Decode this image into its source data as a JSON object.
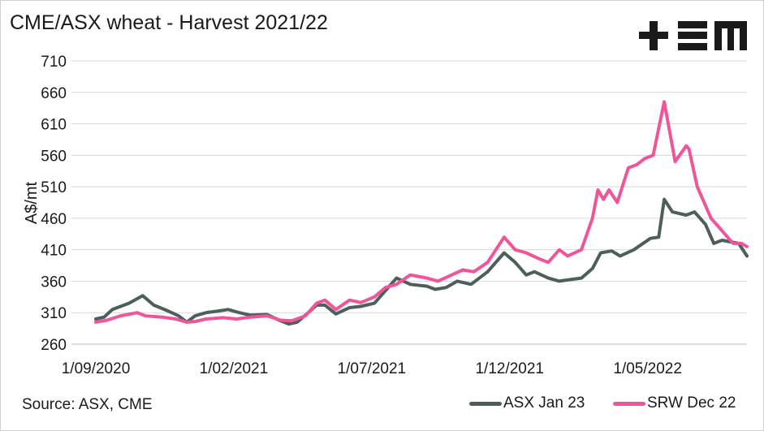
{
  "chart_data": {
    "type": "line",
    "title": "CME/ASX wheat - Harvest 2021/22",
    "xlabel": "",
    "ylabel": "A$/mt",
    "x_unit": "months since 1/09/2020",
    "xlim": [
      0,
      23.6
    ],
    "ylim": [
      260,
      710
    ],
    "yticks": [
      260,
      310,
      360,
      410,
      460,
      510,
      560,
      610,
      660,
      710
    ],
    "xticks": [
      {
        "x": 0,
        "label": "1/09/2020"
      },
      {
        "x": 5,
        "label": "1/02/2021"
      },
      {
        "x": 10,
        "label": "1/07/2021"
      },
      {
        "x": 15,
        "label": "1/12/2021"
      },
      {
        "x": 20,
        "label": "1/05/2022"
      }
    ],
    "grid": true,
    "legend_position": "bottom-right",
    "series": [
      {
        "name": "ASX Jan 23",
        "color": "#4d5f5c",
        "points": [
          [
            0,
            300
          ],
          [
            0.3,
            303
          ],
          [
            0.6,
            315
          ],
          [
            1.2,
            325
          ],
          [
            1.7,
            337
          ],
          [
            2.1,
            322
          ],
          [
            2.6,
            313
          ],
          [
            3.0,
            305
          ],
          [
            3.3,
            295
          ],
          [
            3.6,
            305
          ],
          [
            4.0,
            310
          ],
          [
            4.5,
            313
          ],
          [
            4.8,
            315
          ],
          [
            5.2,
            310
          ],
          [
            5.6,
            306
          ],
          [
            6.2,
            307
          ],
          [
            6.7,
            297
          ],
          [
            7.0,
            292
          ],
          [
            7.3,
            295
          ],
          [
            7.7,
            310
          ],
          [
            8.0,
            322
          ],
          [
            8.3,
            322
          ],
          [
            8.7,
            308
          ],
          [
            9.2,
            318
          ],
          [
            9.6,
            320
          ],
          [
            10.1,
            325
          ],
          [
            10.5,
            345
          ],
          [
            10.9,
            365
          ],
          [
            11.4,
            355
          ],
          [
            12.0,
            352
          ],
          [
            12.3,
            347
          ],
          [
            12.7,
            350
          ],
          [
            13.1,
            360
          ],
          [
            13.6,
            355
          ],
          [
            14.2,
            375
          ],
          [
            14.8,
            405
          ],
          [
            15.2,
            390
          ],
          [
            15.6,
            370
          ],
          [
            15.9,
            375
          ],
          [
            16.4,
            365
          ],
          [
            16.8,
            360
          ],
          [
            17.1,
            362
          ],
          [
            17.6,
            365
          ],
          [
            18.0,
            380
          ],
          [
            18.3,
            405
          ],
          [
            18.7,
            408
          ],
          [
            19.0,
            400
          ],
          [
            19.5,
            410
          ],
          [
            20.1,
            428
          ],
          [
            20.4,
            430
          ],
          [
            20.6,
            490
          ],
          [
            20.9,
            470
          ],
          [
            21.4,
            465
          ],
          [
            21.7,
            470
          ],
          [
            22.1,
            450
          ],
          [
            22.4,
            420
          ],
          [
            22.7,
            425
          ],
          [
            23.3,
            420
          ],
          [
            23.6,
            400
          ]
        ]
      },
      {
        "name": "SRW Dec 22",
        "color": "#f0559a",
        "points": [
          [
            0,
            295
          ],
          [
            0.4,
            298
          ],
          [
            0.9,
            305
          ],
          [
            1.5,
            310
          ],
          [
            1.8,
            305
          ],
          [
            2.4,
            303
          ],
          [
            2.9,
            300
          ],
          [
            3.3,
            295
          ],
          [
            3.6,
            296
          ],
          [
            4.0,
            300
          ],
          [
            4.6,
            302
          ],
          [
            5.1,
            300
          ],
          [
            5.6,
            303
          ],
          [
            6.2,
            305
          ],
          [
            6.7,
            298
          ],
          [
            7.1,
            297
          ],
          [
            7.6,
            305
          ],
          [
            8.0,
            325
          ],
          [
            8.3,
            330
          ],
          [
            8.7,
            315
          ],
          [
            9.2,
            330
          ],
          [
            9.6,
            326
          ],
          [
            10.1,
            335
          ],
          [
            10.5,
            350
          ],
          [
            10.9,
            355
          ],
          [
            11.4,
            370
          ],
          [
            12.0,
            365
          ],
          [
            12.4,
            360
          ],
          [
            12.9,
            370
          ],
          [
            13.3,
            378
          ],
          [
            13.7,
            375
          ],
          [
            14.2,
            390
          ],
          [
            14.8,
            430
          ],
          [
            15.2,
            410
          ],
          [
            15.6,
            405
          ],
          [
            16.1,
            395
          ],
          [
            16.4,
            390
          ],
          [
            16.8,
            410
          ],
          [
            17.1,
            400
          ],
          [
            17.6,
            410
          ],
          [
            18.0,
            460
          ],
          [
            18.2,
            505
          ],
          [
            18.4,
            490
          ],
          [
            18.6,
            505
          ],
          [
            18.9,
            485
          ],
          [
            19.3,
            540
          ],
          [
            19.6,
            545
          ],
          [
            19.9,
            555
          ],
          [
            20.2,
            560
          ],
          [
            20.6,
            645
          ],
          [
            21.0,
            550
          ],
          [
            21.4,
            575
          ],
          [
            21.5,
            570
          ],
          [
            21.8,
            510
          ],
          [
            22.3,
            460
          ],
          [
            22.7,
            440
          ],
          [
            23.1,
            420
          ],
          [
            23.4,
            420
          ],
          [
            23.6,
            415
          ]
        ]
      }
    ]
  },
  "source": "Source: ASX, CME",
  "logo_text": "+EM"
}
